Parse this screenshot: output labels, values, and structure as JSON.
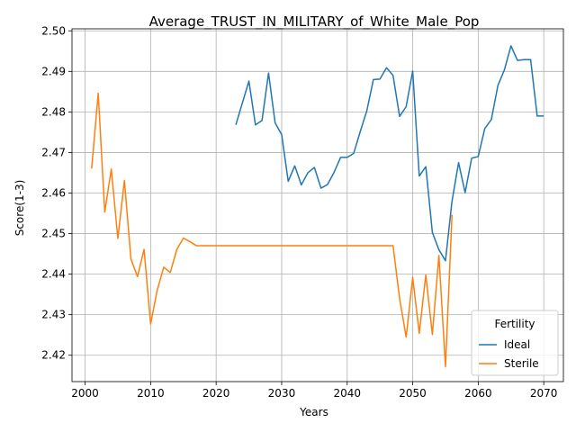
{
  "chart_data": {
    "type": "line",
    "title": "Average_TRUST_IN_MILITARY_of_White_Male_Pop",
    "xlabel": "Years",
    "ylabel": "Score(1-3)",
    "xlim": [
      1998,
      2073
    ],
    "ylim": [
      2.4135,
      2.5005
    ],
    "xticks": [
      2000,
      2010,
      2020,
      2030,
      2040,
      2050,
      2060,
      2070
    ],
    "yticks": [
      2.42,
      2.43,
      2.44,
      2.45,
      2.46,
      2.47,
      2.48,
      2.49,
      2.5
    ],
    "grid": true,
    "legend": {
      "title": "Fertility",
      "placement": "lower right"
    },
    "series": [
      {
        "name": "Ideal",
        "color": "#1f77b4",
        "x": [
          2023,
          2024,
          2025,
          2026,
          2027,
          2028,
          2029,
          2030,
          2031,
          2032,
          2033,
          2034,
          2035,
          2036,
          2037,
          2038,
          2039,
          2040,
          2041,
          2042,
          2043,
          2044,
          2045,
          2046,
          2047,
          2048,
          2049,
          2050,
          2051,
          2052,
          2053,
          2054,
          2055,
          2056,
          2057,
          2058,
          2059,
          2060,
          2061,
          2062,
          2063,
          2064,
          2065,
          2066,
          2067,
          2068,
          2069,
          2070
        ],
        "y": [
          2.4768,
          2.4822,
          2.4876,
          2.4768,
          2.4779,
          2.4896,
          2.4773,
          2.4744,
          2.4629,
          2.4667,
          2.462,
          2.465,
          2.4663,
          2.4612,
          2.4621,
          2.4651,
          2.4688,
          2.4688,
          2.4698,
          2.4752,
          2.4803,
          2.488,
          2.4881,
          2.4909,
          2.489,
          2.4789,
          2.4813,
          2.4901,
          2.4642,
          2.4665,
          2.4503,
          2.446,
          2.4433,
          2.458,
          2.4675,
          2.4601,
          2.4686,
          2.469,
          2.4759,
          2.4781,
          2.4865,
          2.4904,
          2.4963,
          2.4927,
          2.4929,
          2.4929,
          2.479,
          2.479
        ]
      },
      {
        "name": "Sterile",
        "color": "#ff7f0e",
        "x": [
          2001,
          2002,
          2003,
          2004,
          2005,
          2006,
          2007,
          2008,
          2009,
          2010,
          2011,
          2012,
          2013,
          2014,
          2015,
          2016,
          2017,
          2018,
          2019,
          2020,
          2021,
          2022,
          2023,
          2024,
          2025,
          2026,
          2027,
          2028,
          2029,
          2030,
          2031,
          2032,
          2033,
          2034,
          2035,
          2036,
          2037,
          2038,
          2039,
          2040,
          2041,
          2042,
          2043,
          2044,
          2045,
          2046,
          2047,
          2048,
          2049,
          2050,
          2051,
          2052,
          2053,
          2054,
          2055,
          2056
        ],
        "y": [
          2.466,
          2.4846,
          2.4553,
          2.4659,
          2.4488,
          2.4631,
          2.4437,
          2.4394,
          2.4461,
          2.4277,
          2.436,
          2.4417,
          2.4404,
          2.4461,
          2.4489,
          2.448,
          2.447,
          2.447,
          2.447,
          2.447,
          2.447,
          2.447,
          2.447,
          2.447,
          2.447,
          2.447,
          2.447,
          2.447,
          2.447,
          2.447,
          2.447,
          2.447,
          2.447,
          2.447,
          2.447,
          2.447,
          2.447,
          2.447,
          2.447,
          2.447,
          2.447,
          2.447,
          2.447,
          2.447,
          2.447,
          2.447,
          2.447,
          2.434,
          2.4245,
          2.4392,
          2.4254,
          2.4398,
          2.4251,
          2.4446,
          2.4172,
          2.4546
        ]
      }
    ]
  }
}
